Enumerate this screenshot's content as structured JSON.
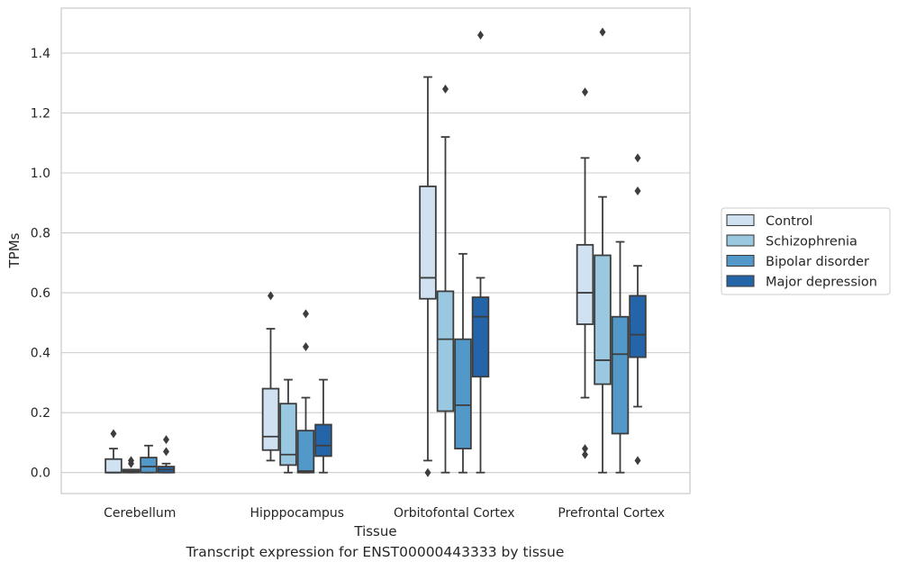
{
  "caption": "Transcript expression for ENST00000443333 by tissue",
  "chart_data": {
    "type": "boxplot",
    "title": "",
    "xlabel": "Tissue",
    "ylabel": "TPMs",
    "ylim": [
      -0.07,
      1.55
    ],
    "yticks": [
      0.0,
      0.2,
      0.4,
      0.6,
      0.8,
      1.0,
      1.2,
      1.4
    ],
    "ytick_labels": [
      "0.0",
      "0.2",
      "0.4",
      "0.6",
      "0.8",
      "1.0",
      "1.2",
      "1.4"
    ],
    "grid": true,
    "legend_position": "outside-right",
    "categories": [
      "Cerebellum",
      "Hipppocampus",
      "Orbitofontal Cortex",
      "Prefrontal Cortex"
    ],
    "series": [
      {
        "name": "Control",
        "color": "#d0e2f2",
        "boxes": [
          {
            "whislo": 0.0,
            "q1": 0.0,
            "med": 0.0,
            "q3": 0.045,
            "whishi": 0.08,
            "fliers": [
              0.13
            ]
          },
          {
            "whislo": 0.04,
            "q1": 0.075,
            "med": 0.12,
            "q3": 0.28,
            "whishi": 0.48,
            "fliers": [
              0.59
            ]
          },
          {
            "whislo": 0.04,
            "q1": 0.58,
            "med": 0.65,
            "q3": 0.955,
            "whishi": 1.32,
            "fliers": [
              0.0
            ]
          },
          {
            "whislo": 0.25,
            "q1": 0.495,
            "med": 0.6,
            "q3": 0.76,
            "whishi": 1.05,
            "fliers": [
              0.08,
              0.06,
              1.27
            ]
          }
        ]
      },
      {
        "name": "Schizophrenia",
        "color": "#9ac8e0",
        "boxes": [
          {
            "whislo": 0.0,
            "q1": 0.0,
            "med": 0.005,
            "q3": 0.01,
            "whishi": 0.01,
            "fliers": [
              0.04,
              0.03
            ]
          },
          {
            "whislo": 0.0,
            "q1": 0.025,
            "med": 0.06,
            "q3": 0.23,
            "whishi": 0.31,
            "fliers": []
          },
          {
            "whislo": 0.0,
            "q1": 0.205,
            "med": 0.445,
            "q3": 0.605,
            "whishi": 1.12,
            "fliers": [
              1.28
            ]
          },
          {
            "whislo": 0.0,
            "q1": 0.295,
            "med": 0.375,
            "q3": 0.725,
            "whishi": 0.92,
            "fliers": [
              1.47
            ]
          }
        ]
      },
      {
        "name": "Bipolar disorder",
        "color": "#5298c9",
        "boxes": [
          {
            "whislo": 0.0,
            "q1": 0.0,
            "med": 0.02,
            "q3": 0.05,
            "whishi": 0.09,
            "fliers": []
          },
          {
            "whislo": 0.0,
            "q1": 0.0,
            "med": 0.005,
            "q3": 0.14,
            "whishi": 0.25,
            "fliers": [
              0.42,
              0.53
            ]
          },
          {
            "whislo": 0.0,
            "q1": 0.08,
            "med": 0.225,
            "q3": 0.445,
            "whishi": 0.73,
            "fliers": []
          },
          {
            "whislo": 0.0,
            "q1": 0.13,
            "med": 0.395,
            "q3": 0.52,
            "whishi": 0.77,
            "fliers": []
          }
        ]
      },
      {
        "name": "Major depression",
        "color": "#2465a9",
        "boxes": [
          {
            "whislo": 0.0,
            "q1": 0.0,
            "med": 0.01,
            "q3": 0.02,
            "whishi": 0.03,
            "fliers": [
              0.07,
              0.11
            ]
          },
          {
            "whislo": 0.0,
            "q1": 0.055,
            "med": 0.09,
            "q3": 0.16,
            "whishi": 0.31,
            "fliers": []
          },
          {
            "whislo": 0.0,
            "q1": 0.32,
            "med": 0.52,
            "q3": 0.585,
            "whishi": 0.65,
            "fliers": [
              1.46
            ]
          },
          {
            "whislo": 0.22,
            "q1": 0.385,
            "med": 0.46,
            "q3": 0.59,
            "whishi": 0.69,
            "fliers": [
              0.04,
              0.94,
              1.05
            ]
          }
        ]
      }
    ]
  }
}
